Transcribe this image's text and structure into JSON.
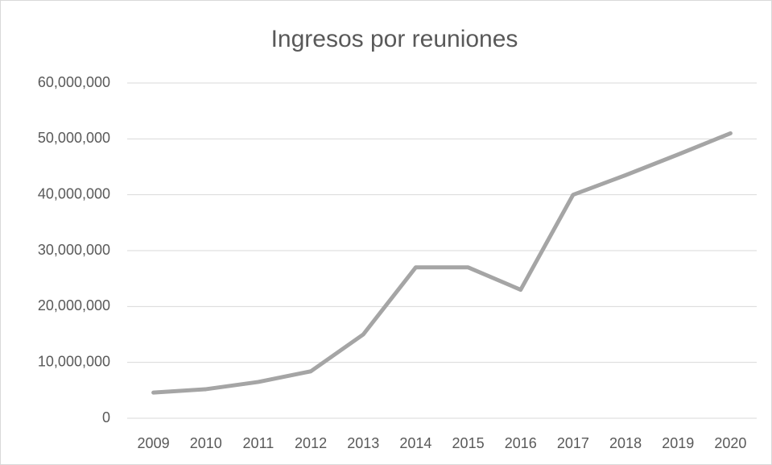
{
  "chart_data": {
    "type": "line",
    "title": "Ingresos por reuniones",
    "categories": [
      "2009",
      "2010",
      "2011",
      "2012",
      "2013",
      "2014",
      "2015",
      "2016",
      "2017",
      "2018",
      "2019",
      "2020"
    ],
    "series": [
      {
        "color": "#a5a5a5",
        "values": [
          4600000,
          5200000,
          6500000,
          8400000,
          15000000,
          27000000,
          27000000,
          23000000,
          40000000,
          43500000,
          47200000,
          51000000
        ]
      }
    ],
    "ylim": [
      0,
      60000000
    ],
    "yticks": [
      0,
      {
        "value": 10000000,
        "label": "10,000,000"
      },
      {
        "value": 20000000,
        "label": "20,000,000"
      },
      {
        "value": 30000000,
        "label": "30,000,000"
      },
      {
        "value": 40000000,
        "label": "40,000,000"
      },
      {
        "value": 50000000,
        "label": "50,000,000"
      },
      {
        "value": 60000000,
        "label": "60,000,000"
      }
    ],
    "grid": true
  }
}
